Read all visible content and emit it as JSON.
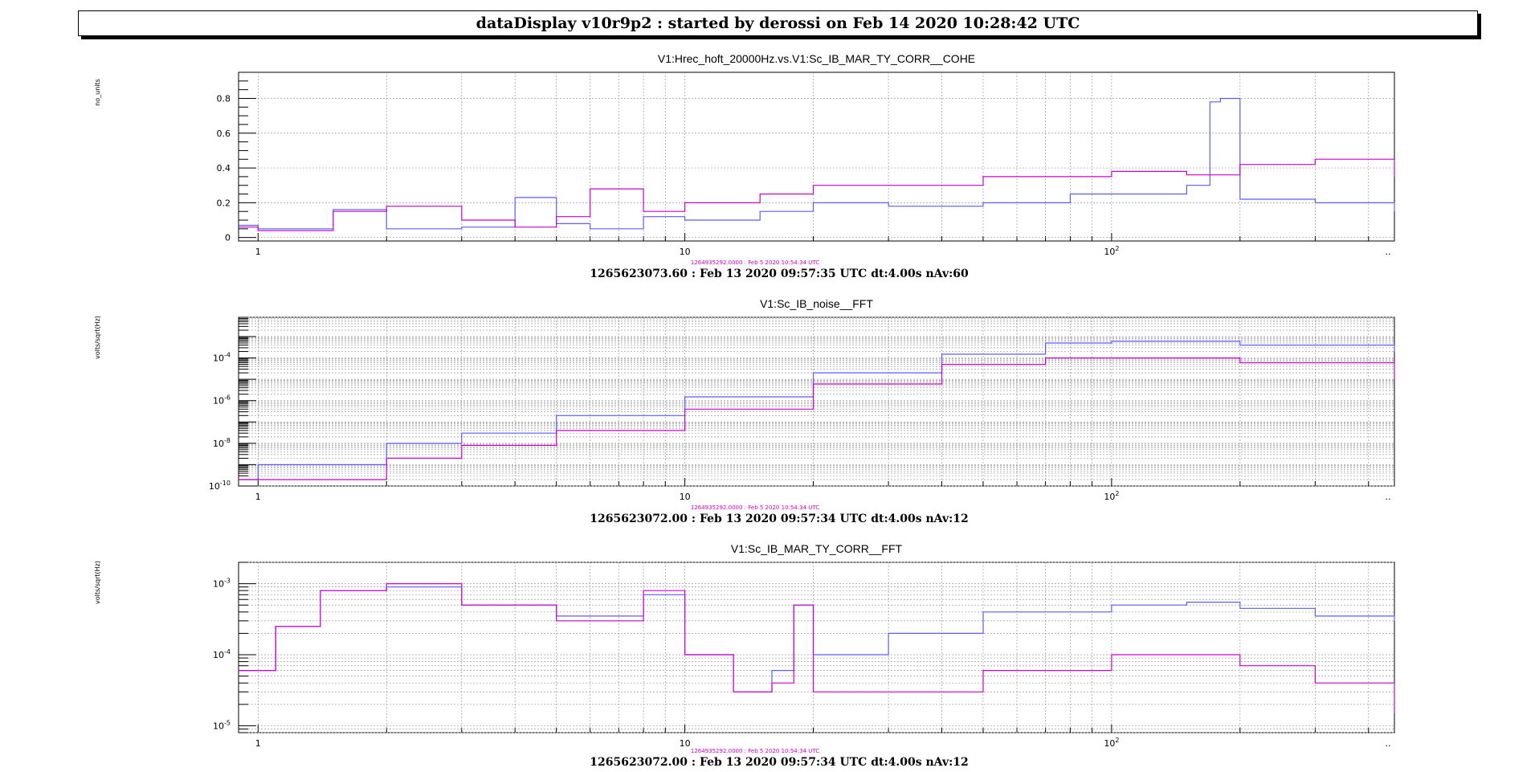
{
  "header": {
    "title": "dataDisplay v10r9p2 : started by derossi on Feb 14 2020 10:28:42 UTC"
  },
  "colors": {
    "current": "#5b5bff",
    "reference": "#cc00cc"
  },
  "chart_data": [
    {
      "type": "line",
      "title": "V1:Hrec_hoft_20000Hz.vs.V1:Sc_IB_MAR_TY_CORR__COHE",
      "ylabel": "no_units",
      "xscale": "log",
      "yscale": "linear",
      "xlim": [
        0.9,
        460
      ],
      "ylim": [
        -0.02,
        0.95
      ],
      "yticks": [
        "0",
        "0.2",
        "0.4",
        "0.6",
        "0.8"
      ],
      "xticks": [
        "1",
        "10",
        "10²",
        "‥"
      ],
      "reference_label": "1264935292.0000 : Feb  5 2020 10:54:34 UTC",
      "footer": "1265623073.60 : Feb 13 2020 09:57:35 UTC dt:4.00s nAv:60",
      "series": [
        {
          "x": [
            0.9,
            1,
            1.5,
            2,
            3,
            4,
            5,
            6,
            8,
            10,
            15,
            20,
            30,
            50,
            80,
            100,
            150,
            170,
            180,
            200,
            300,
            460
          ],
          "y": [
            0.07,
            0.05,
            0.16,
            0.05,
            0.06,
            0.23,
            0.08,
            0.05,
            0.12,
            0.1,
            0.15,
            0.2,
            0.18,
            0.2,
            0.25,
            0.25,
            0.3,
            0.78,
            0.8,
            0.22,
            0.2,
            0.15
          ]
        },
        {
          "x": [
            0.9,
            1,
            1.5,
            2,
            3,
            4,
            5,
            6,
            8,
            10,
            15,
            20,
            30,
            50,
            80,
            100,
            150,
            200,
            300,
            460
          ],
          "y": [
            0.06,
            0.04,
            0.15,
            0.18,
            0.1,
            0.06,
            0.12,
            0.28,
            0.15,
            0.2,
            0.25,
            0.3,
            0.3,
            0.35,
            0.35,
            0.38,
            0.36,
            0.42,
            0.45,
            0.35
          ]
        }
      ]
    },
    {
      "type": "line",
      "title": "V1:Sc_IB_noise__FFT",
      "ylabel": "volts/sqrt(Hz)",
      "xscale": "log",
      "yscale": "log",
      "xlim": [
        0.9,
        460
      ],
      "ylim": [
        1e-10,
        0.008
      ],
      "yticks": [
        "10⁻⁴",
        "10⁻⁶",
        "10⁻⁸",
        "10⁻¹⁰"
      ],
      "xticks": [
        "1",
        "10",
        "10²",
        "‥"
      ],
      "reference_label": "1264935292.0000 : Feb  5 2020 10:54:34 UTC",
      "footer": "1265623072.00 : Feb 13 2020 09:57:34 UTC dt:4.00s nAv:12",
      "series": [
        {
          "x": [
            0.9,
            1,
            2,
            3,
            5,
            10,
            20,
            40,
            70,
            100,
            200,
            460
          ],
          "y": [
            2e-10,
            1e-09,
            1e-08,
            3e-08,
            2e-07,
            1.5e-06,
            2e-05,
            0.00015,
            0.0005,
            0.0006,
            0.0004,
            0.0002
          ]
        },
        {
          "x": [
            0.9,
            1,
            2,
            3,
            5,
            10,
            20,
            40,
            70,
            100,
            200,
            460
          ],
          "y": [
            2e-10,
            2e-10,
            2e-09,
            8e-09,
            4e-08,
            4e-07,
            6e-06,
            5e-05,
            0.0001,
            0.0001,
            6e-05,
            1e-05
          ]
        }
      ]
    },
    {
      "type": "line",
      "title": "V1:Sc_IB_MAR_TY_CORR__FFT",
      "ylabel": "volts/sqrt(Hz)",
      "xscale": "log",
      "yscale": "log",
      "xlim": [
        0.9,
        460
      ],
      "ylim": [
        8e-06,
        0.002
      ],
      "yticks": [
        "10⁻³",
        "10⁻⁴",
        "10⁻⁵"
      ],
      "xticks": [
        "1",
        "10",
        "10²",
        "‥"
      ],
      "reference_label": "1264935292.0000 : Feb  5 2020 10:54:34 UTC",
      "footer": "1265623072.00 : Feb 13 2020 09:57:34 UTC dt:4.00s nAv:12",
      "series": [
        {
          "x": [
            0.9,
            1.1,
            1.4,
            2,
            3,
            5,
            8,
            10,
            13,
            16,
            18,
            20,
            30,
            50,
            100,
            150,
            200,
            300,
            460
          ],
          "y": [
            6e-05,
            0.00025,
            0.0008,
            0.0009,
            0.0005,
            0.00035,
            0.0007,
            0.0001,
            3e-05,
            6e-05,
            0.0005,
            0.0001,
            0.0002,
            0.0004,
            0.0005,
            0.00055,
            0.00045,
            0.00035,
            0.0003
          ]
        },
        {
          "x": [
            0.9,
            1.1,
            1.4,
            2,
            3,
            5,
            8,
            10,
            13,
            16,
            18,
            20,
            30,
            50,
            100,
            150,
            200,
            300,
            460
          ],
          "y": [
            6e-05,
            0.00025,
            0.0008,
            0.001,
            0.0005,
            0.0003,
            0.0008,
            0.0001,
            3e-05,
            4e-05,
            0.0005,
            3e-05,
            3e-05,
            6e-05,
            0.0001,
            0.0001,
            7e-05,
            4e-05,
            1.5e-05
          ]
        }
      ]
    }
  ]
}
